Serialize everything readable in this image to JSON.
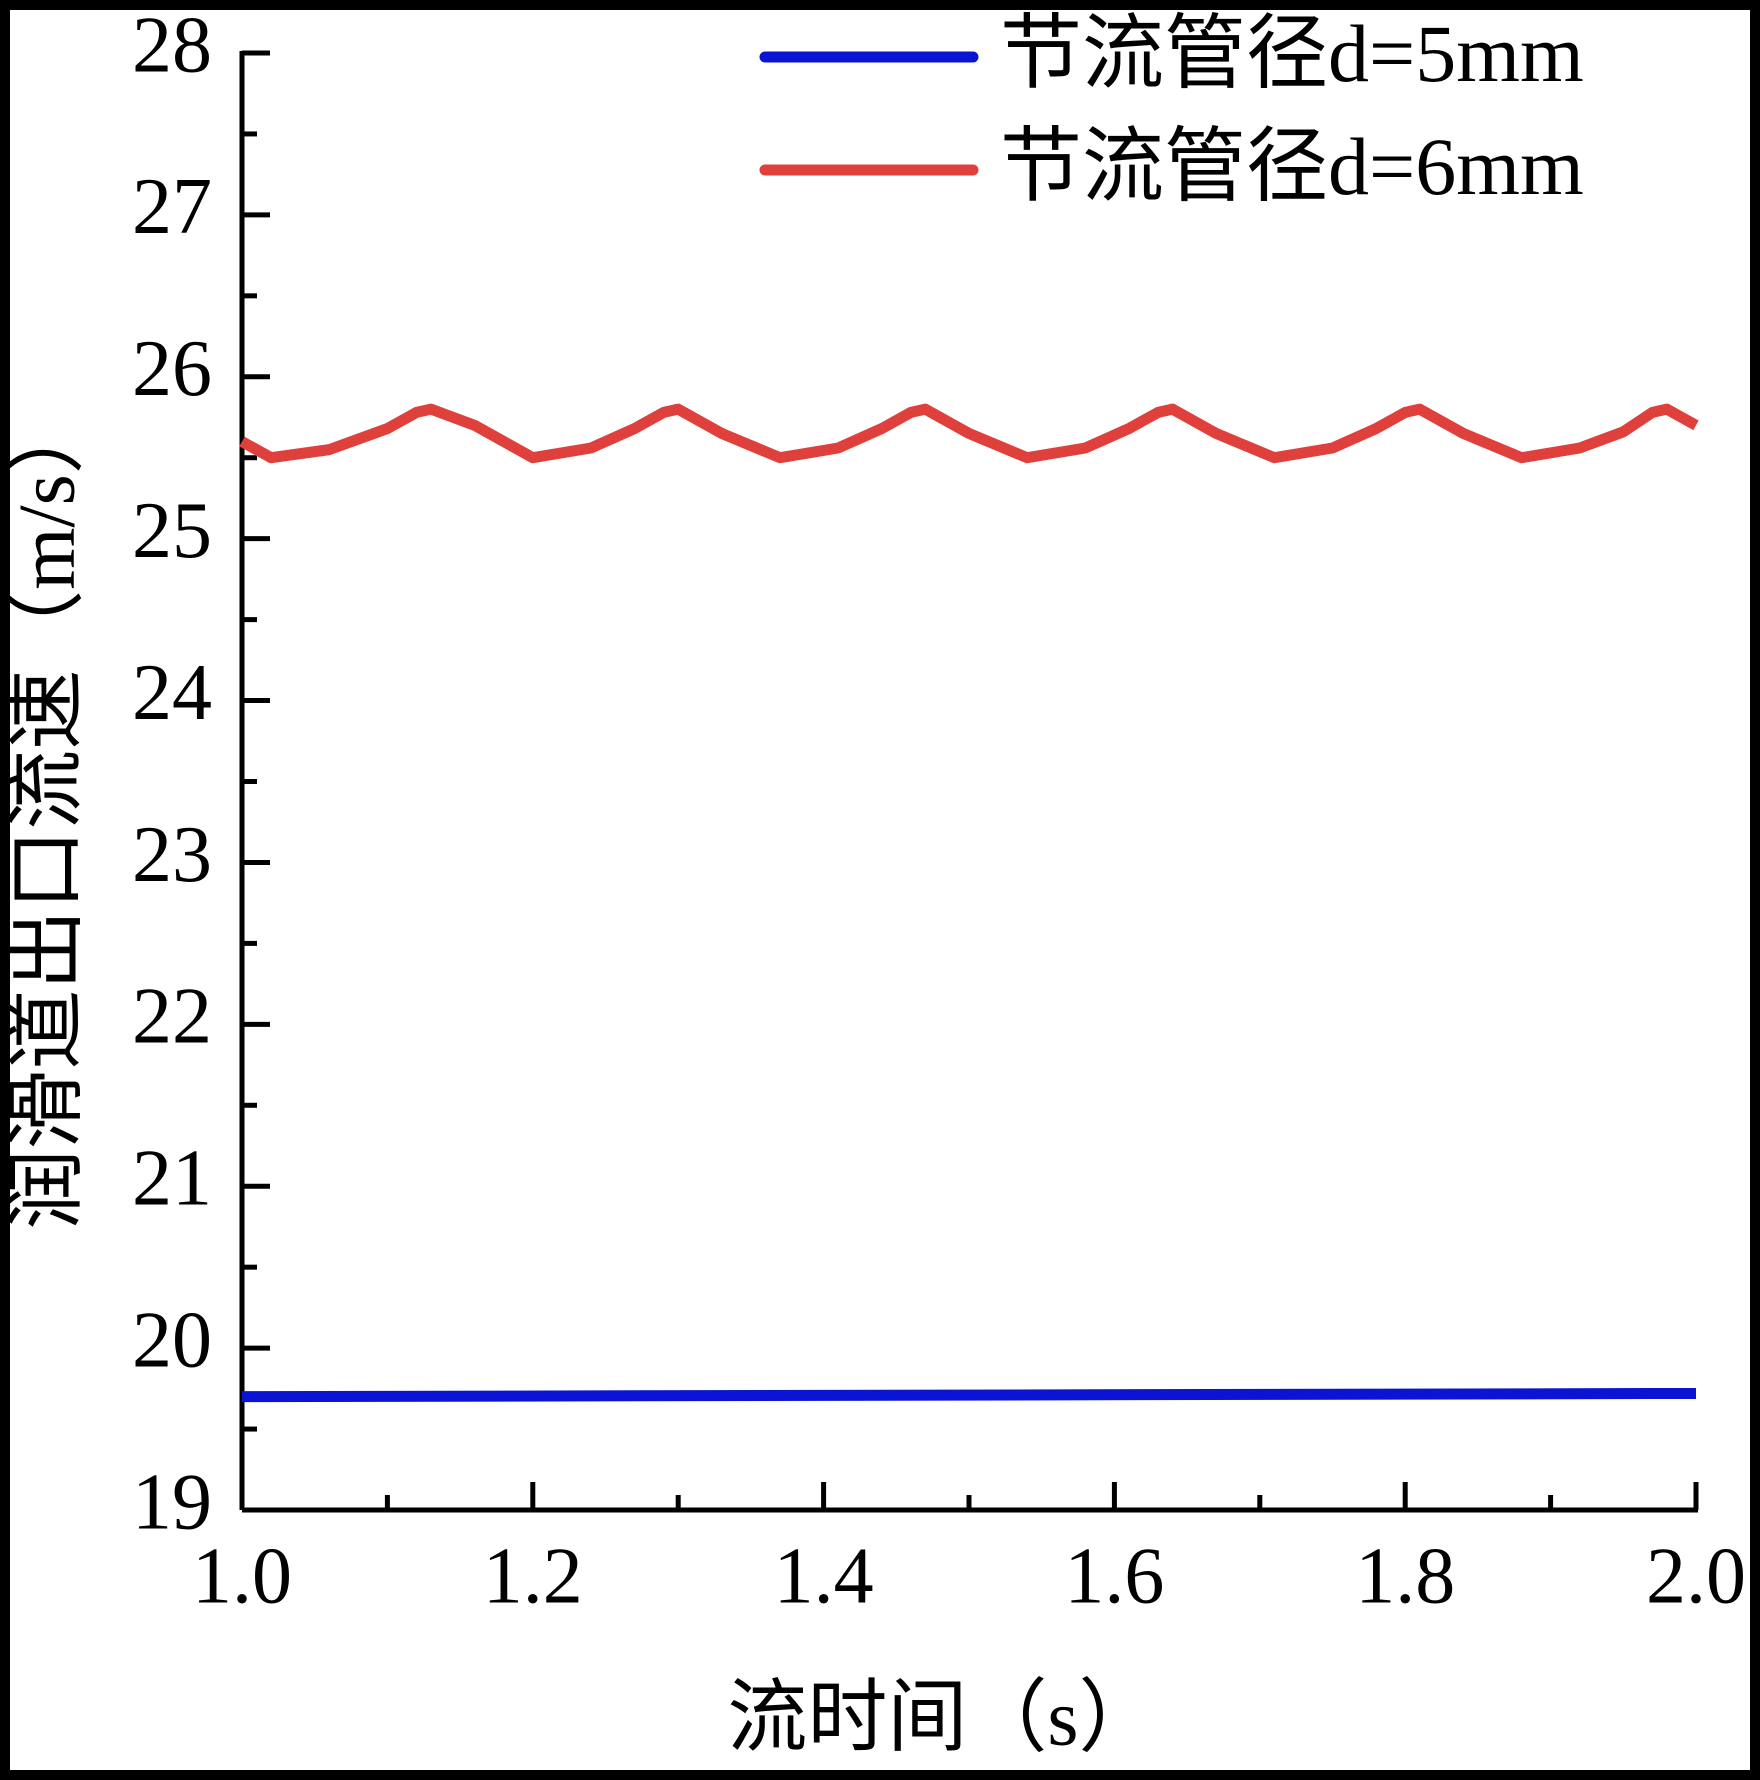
{
  "chart_data": {
    "type": "line",
    "x_label": "流时间（s）",
    "y_label": "润滑道出口流速（m/s）",
    "xlim": [
      1.0,
      2.0
    ],
    "xticks": [
      {
        "value": 1.0,
        "label": "1.0"
      },
      1.2,
      1.4,
      1.6,
      1.8,
      {
        "value": 2.0,
        "label": "2.0"
      }
    ],
    "ylim": [
      19,
      28
    ],
    "yticks": [
      19,
      20,
      21,
      22,
      23,
      24,
      25,
      26,
      27,
      28
    ],
    "legend": "upper right",
    "series": [
      {
        "name": "节流管径d=5mm",
        "color": "#0a14d2",
        "x": [
          1.0,
          2.0
        ],
        "values": [
          19.7,
          19.72
        ]
      },
      {
        "name": "节流管径d=6mm",
        "color": "#e0403c",
        "x": [
          1.0,
          1.02,
          1.06,
          1.1,
          1.12,
          1.13,
          1.16,
          1.2,
          1.24,
          1.27,
          1.29,
          1.3,
          1.33,
          1.37,
          1.41,
          1.44,
          1.46,
          1.47,
          1.5,
          1.54,
          1.58,
          1.61,
          1.63,
          1.64,
          1.67,
          1.71,
          1.75,
          1.78,
          1.8,
          1.81,
          1.84,
          1.88,
          1.92,
          1.95,
          1.97,
          1.98,
          2.0
        ],
        "values": [
          25.6,
          25.5,
          25.55,
          25.68,
          25.78,
          25.8,
          25.7,
          25.5,
          25.56,
          25.68,
          25.78,
          25.8,
          25.65,
          25.5,
          25.56,
          25.68,
          25.78,
          25.8,
          25.65,
          25.5,
          25.56,
          25.68,
          25.78,
          25.8,
          25.65,
          25.5,
          25.56,
          25.68,
          25.78,
          25.8,
          25.65,
          25.5,
          25.56,
          25.66,
          25.78,
          25.8,
          25.7
        ]
      }
    ]
  }
}
